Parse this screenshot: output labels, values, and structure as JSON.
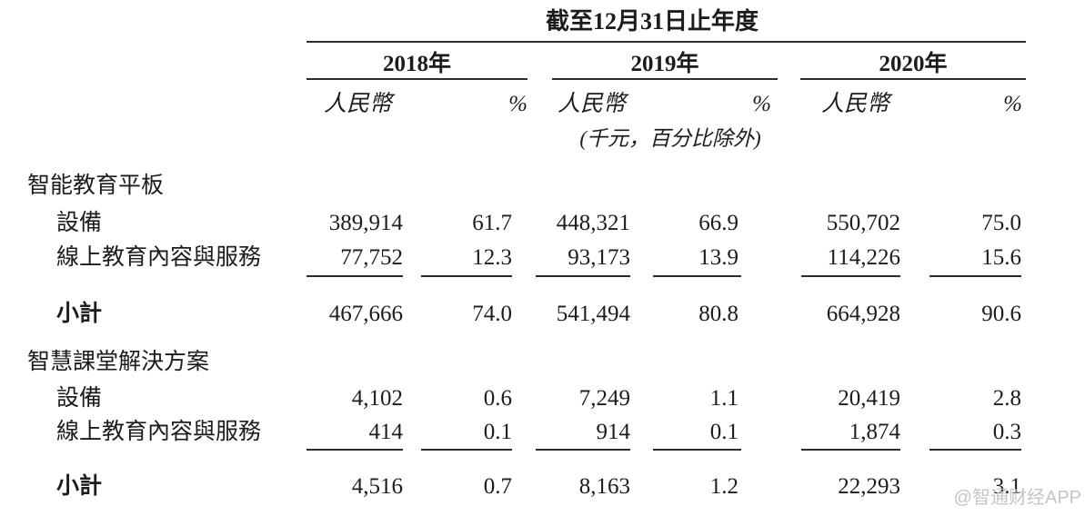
{
  "table": {
    "title": "截至12月31日止年度",
    "years": [
      "2018年",
      "2019年",
      "2020年"
    ],
    "sub_headers": {
      "currency": "人民幣",
      "percent": "%"
    },
    "unit_note": "(千元，百分比除外)",
    "sections": [
      {
        "header": "智能教育平板",
        "rows": [
          {
            "label": "設備",
            "values": [
              "389,914",
              "61.7",
              "448,321",
              "66.9",
              "550,702",
              "75.0"
            ]
          },
          {
            "label": "線上教育內容與服務",
            "values": [
              "77,752",
              "12.3",
              "93,173",
              "13.9",
              "114,226",
              "15.6"
            ]
          }
        ],
        "subtotal": {
          "label": "小計",
          "values": [
            "467,666",
            "74.0",
            "541,494",
            "80.8",
            "664,928",
            "90.6"
          ]
        }
      },
      {
        "header": "智慧課堂解決方案",
        "rows": [
          {
            "label": "設備",
            "values": [
              "4,102",
              "0.6",
              "7,249",
              "1.1",
              "20,419",
              "2.8"
            ]
          },
          {
            "label": "線上教育內容與服務",
            "values": [
              "414",
              "0.1",
              "914",
              "0.1",
              "1,874",
              "0.3"
            ]
          }
        ],
        "subtotal": {
          "label": "小計",
          "values": [
            "4,516",
            "0.7",
            "8,163",
            "1.2",
            "22,293",
            "3.1"
          ]
        }
      }
    ]
  },
  "watermark": "@智通财经APP",
  "colors": {
    "background": "#ffffff",
    "text": "#1c1c1c",
    "rule": "#2b2b2b",
    "watermark": "#c5c5c5"
  }
}
